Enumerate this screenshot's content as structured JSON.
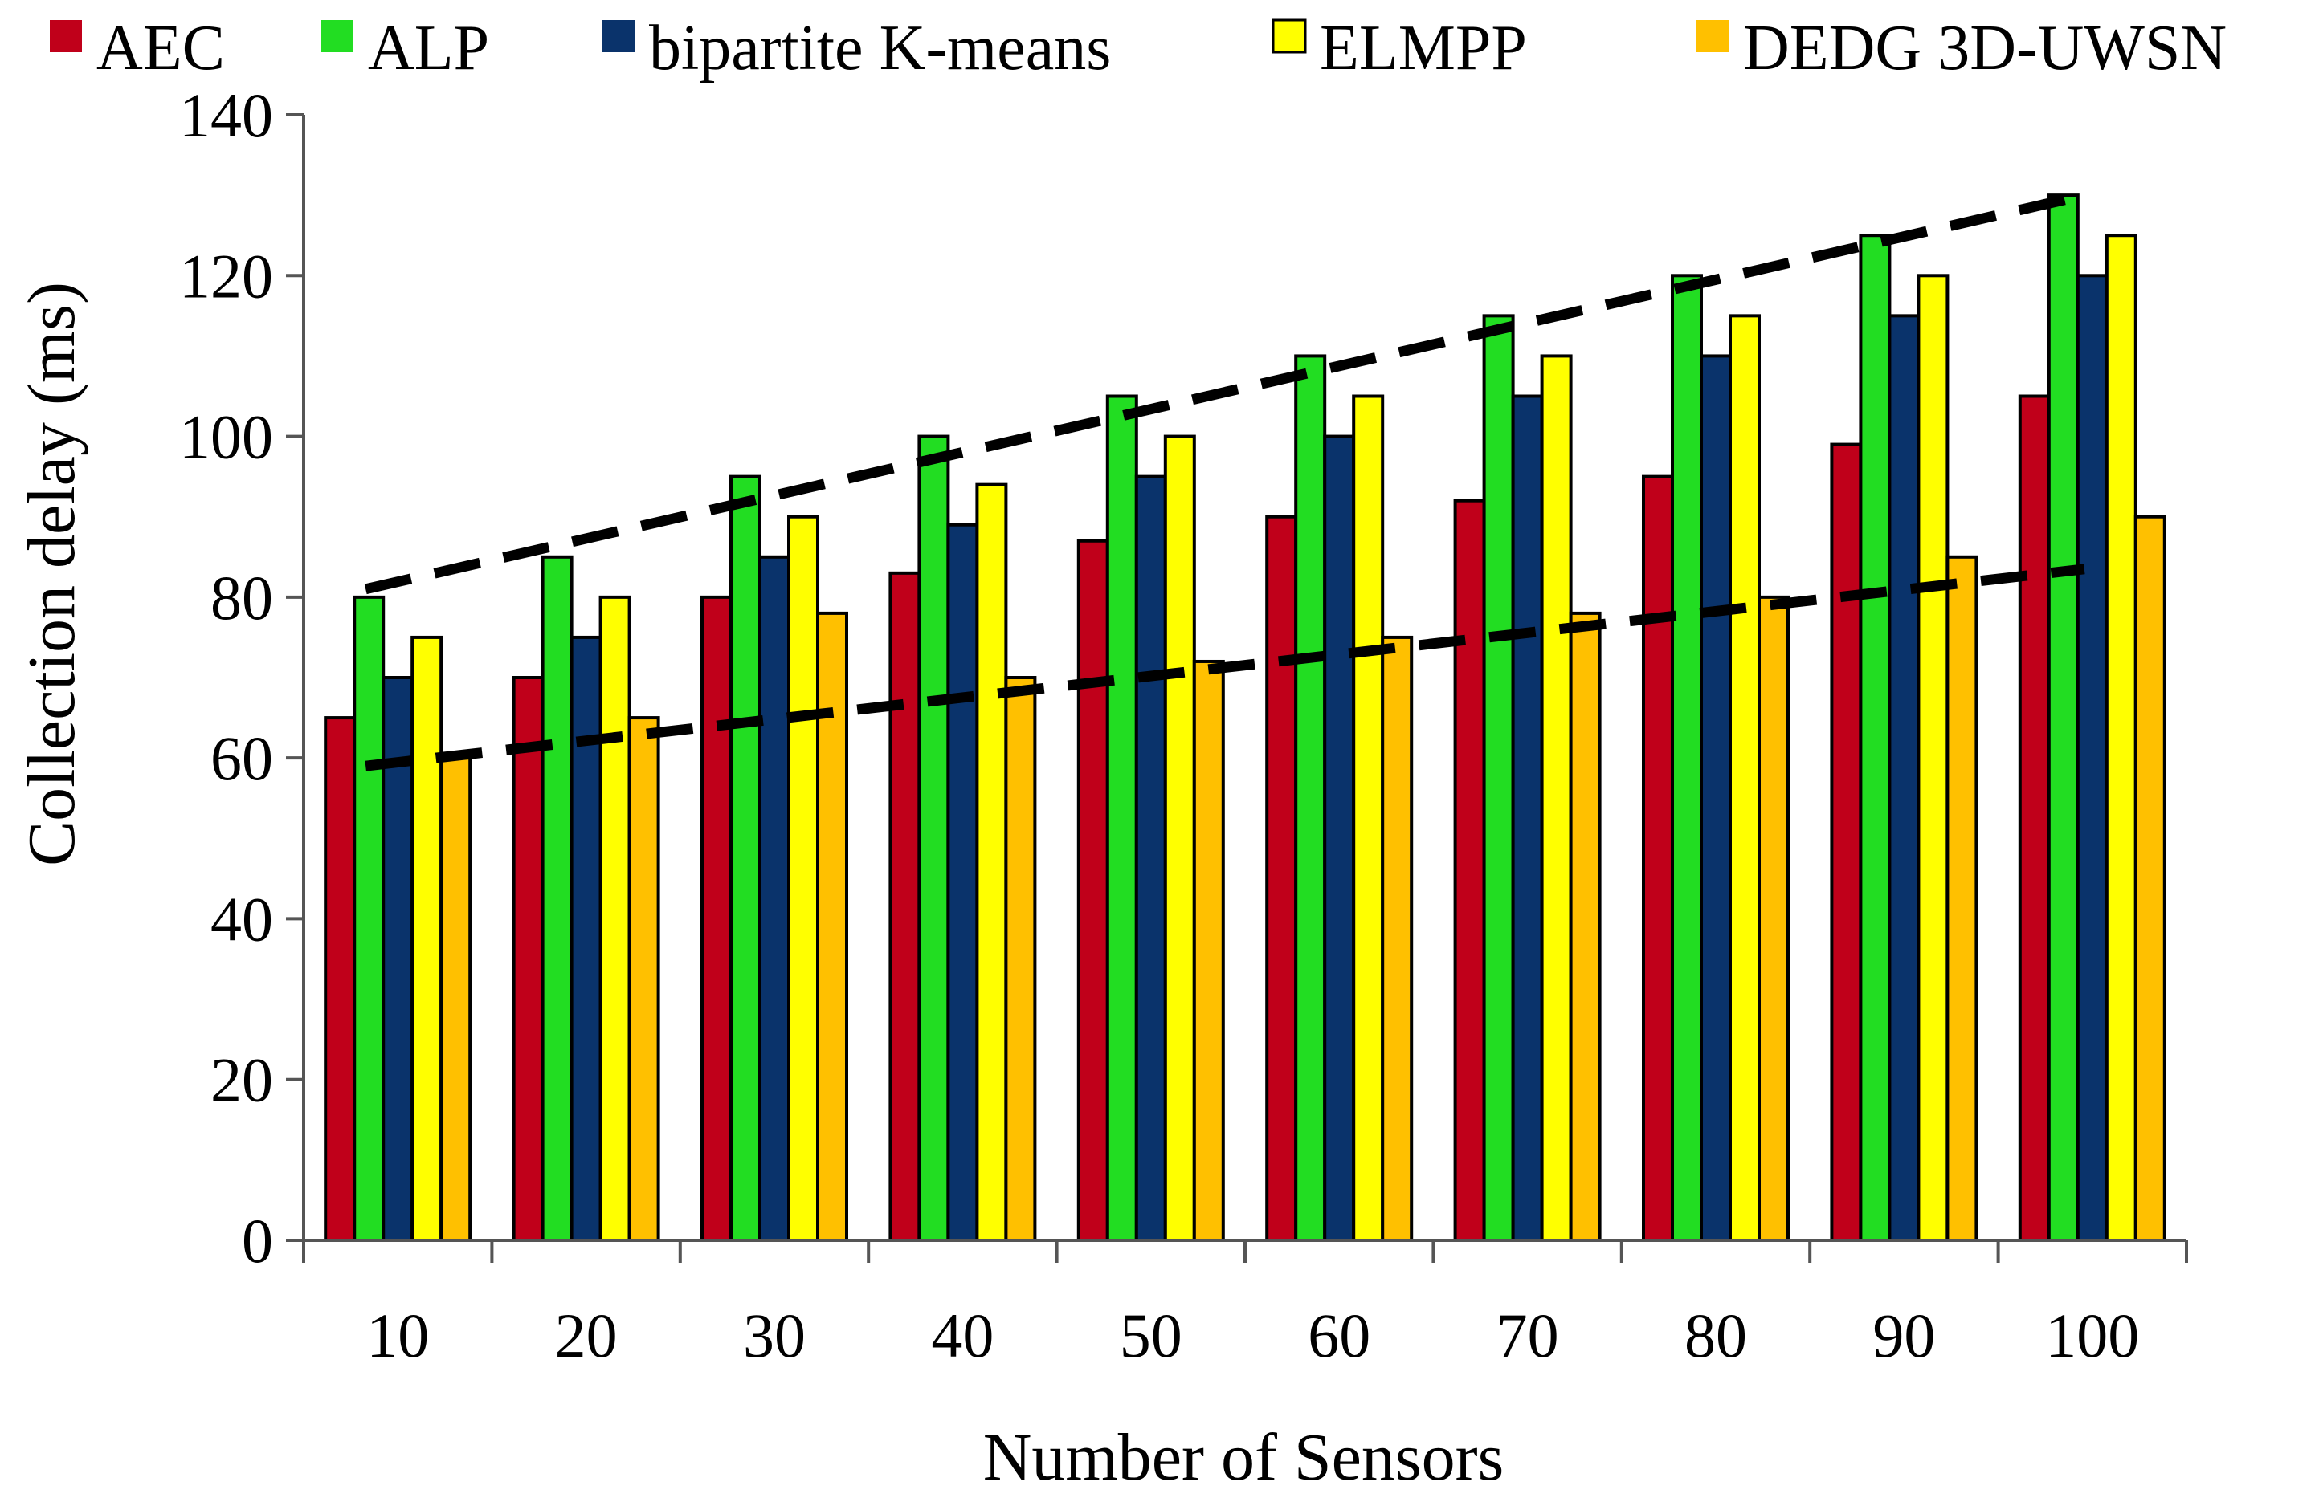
{
  "chart_data": {
    "type": "bar",
    "title": "",
    "xlabel": "Number of Sensors",
    "ylabel": "Collection delay (ms)",
    "ylim": [
      0,
      140
    ],
    "yticks": [
      0,
      20,
      40,
      60,
      80,
      100,
      120,
      140
    ],
    "categories": [
      "10",
      "20",
      "30",
      "40",
      "50",
      "60",
      "70",
      "80",
      "90",
      "100"
    ],
    "series": [
      {
        "name": "AEC",
        "color": "#c0001a",
        "values": [
          65,
          70,
          80,
          83,
          87,
          90,
          92,
          95,
          99,
          105
        ]
      },
      {
        "name": "ALP",
        "color": "#22dd22",
        "values": [
          80,
          85,
          95,
          100,
          105,
          110,
          115,
          120,
          125,
          130
        ]
      },
      {
        "name": "bipartite K-means",
        "color": "#0a336b",
        "values": [
          70,
          75,
          85,
          89,
          95,
          100,
          105,
          110,
          115,
          120
        ]
      },
      {
        "name": "ELMPP",
        "color": "#ffff00",
        "values": [
          75,
          80,
          90,
          94,
          100,
          105,
          110,
          115,
          120,
          125
        ]
      },
      {
        "name": "DEDG 3D-UWSN",
        "color": "#ffc000",
        "values": [
          60,
          65,
          78,
          70,
          72,
          75,
          78,
          80,
          85,
          90
        ]
      }
    ],
    "trend_lines": [
      {
        "name": "upper-trend",
        "style": "dashed",
        "start": {
          "category": "10",
          "value": 81
        },
        "end": {
          "category": "100",
          "value": 130
        }
      },
      {
        "name": "lower-trend",
        "style": "dashed",
        "start": {
          "category": "10",
          "value": 59
        },
        "end": {
          "category": "100",
          "value": 83.5
        }
      }
    ],
    "legend": "top",
    "grid": false
  }
}
